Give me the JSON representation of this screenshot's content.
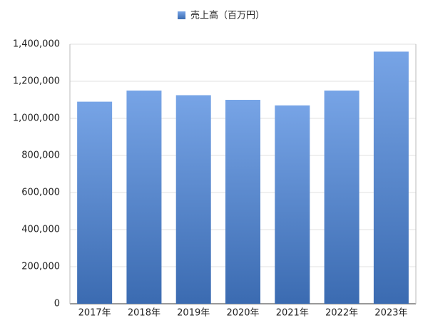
{
  "chart_data": {
    "type": "bar",
    "legend_position": "top",
    "series": [
      {
        "name": "売上高（百万円）",
        "color": "#4a86dd",
        "values": [
          1090000,
          1150000,
          1125000,
          1100000,
          1070000,
          1150000,
          1360000
        ]
      }
    ],
    "categories": [
      "2017年",
      "2018年",
      "2019年",
      "2020年",
      "2021年",
      "2022年",
      "2023年"
    ],
    "ylim": [
      0,
      1400000
    ],
    "yticks": [
      0,
      {
        "value": 200000,
        "label": "200,000"
      },
      {
        "value": 400000,
        "label": "400,000"
      },
      {
        "value": 600000,
        "label": "600,000"
      },
      {
        "value": 800000,
        "label": "800,000"
      },
      {
        "value": 1000000,
        "label": "1,000,000"
      },
      {
        "value": 1200000,
        "label": "1,200,000"
      },
      {
        "value": 1400000,
        "label": "1,400,000"
      }
    ],
    "grid": true
  }
}
